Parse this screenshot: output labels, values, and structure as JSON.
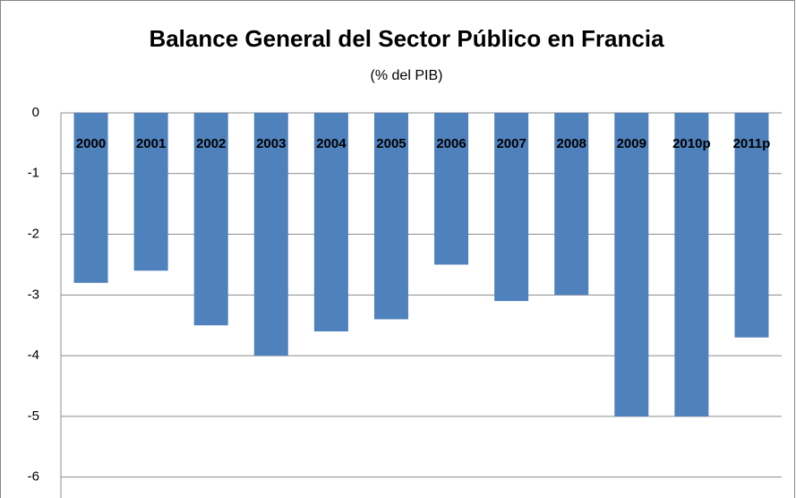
{
  "chart_data": {
    "type": "bar",
    "title": "Balance General del Sector Público en Francia",
    "subtitle": "(% del PIB)",
    "categories": [
      "2000",
      "2001",
      "2002",
      "2003",
      "2004",
      "2005",
      "2006",
      "2007",
      "2008",
      "2009",
      "2010p",
      "2011p"
    ],
    "values": [
      -2.8,
      -2.6,
      -3.5,
      -4.0,
      -3.6,
      -3.4,
      -2.5,
      -3.1,
      -3.0,
      -5.0,
      -5.0,
      -3.7
    ],
    "color": "#4f81bd",
    "ylim": [
      -6.3,
      0
    ],
    "yticks": [
      0,
      -1,
      -2,
      -3,
      -4,
      -5,
      -6
    ],
    "grid": true
  }
}
